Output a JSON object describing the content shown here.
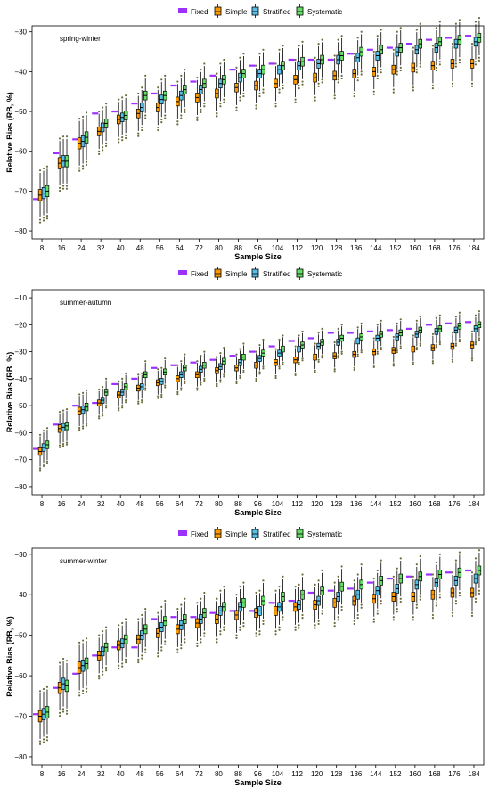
{
  "colors": {
    "Fixed": "#9b30ff",
    "Simple": "#ff9900",
    "Stratified": "#55bfe8",
    "Systematic": "#66dd66"
  },
  "chart_data": [
    {
      "type": "box",
      "title": "spring-winter",
      "xlabel": "Sample Size",
      "ylabel": "Relative Bias (RB, %)",
      "categories": [
        "8",
        "16",
        "24",
        "32",
        "40",
        "48",
        "56",
        "64",
        "72",
        "80",
        "88",
        "96",
        "104",
        "112",
        "120",
        "128",
        "136",
        "144",
        "152",
        "160",
        "168",
        "176",
        "184"
      ],
      "yticks": [
        -30,
        -40,
        -50,
        -60,
        -70,
        -80
      ],
      "ylim": [
        -82,
        -28.5
      ],
      "legend": [
        "Fixed",
        "Simple",
        "Stratified",
        "Systematic"
      ],
      "legend_position": "top",
      "series": [
        {
          "name": "Fixed",
          "values": [
            -72,
            -60.5,
            -57,
            -50.5,
            -50,
            -48,
            -45.5,
            -43.5,
            -42.5,
            -41,
            -39.5,
            -38.5,
            -38,
            -37,
            -37,
            -37,
            -35.5,
            -34.5,
            -34,
            -33,
            -32,
            -31.5,
            -31
          ]
        },
        {
          "name": "Simple",
          "values": [
            -71,
            -63,
            -58,
            -55,
            -52,
            -50.5,
            -49,
            -47.5,
            -46.5,
            -45.5,
            -44,
            -43.5,
            -43,
            -42,
            -41.5,
            -41,
            -40.5,
            -40,
            -39.5,
            -39,
            -38.5,
            -38,
            -38
          ]
        },
        {
          "name": "Stratified",
          "values": [
            -70.5,
            -62.5,
            -57.5,
            -54,
            -51.5,
            -49,
            -47,
            -46,
            -44.5,
            -43,
            -41.5,
            -40.5,
            -39.5,
            -38.5,
            -38,
            -37,
            -36.5,
            -36,
            -35,
            -34.5,
            -34,
            -33,
            -32.5
          ]
        },
        {
          "name": "Systematic",
          "values": [
            -70,
            -62.5,
            -56.5,
            -53,
            -51,
            -46,
            -46,
            -44.5,
            -43,
            -42,
            -40.5,
            -39.5,
            -38.5,
            -37.5,
            -37,
            -36,
            -35,
            -34.5,
            -34,
            -33,
            -32.5,
            -32,
            -31.5
          ]
        }
      ]
    },
    {
      "type": "box",
      "title": "summer-autumn",
      "xlabel": "Sample Size",
      "ylabel": "Relative Bias (RB, %)",
      "categories": [
        "8",
        "16",
        "24",
        "32",
        "40",
        "48",
        "56",
        "64",
        "72",
        "80",
        "88",
        "96",
        "104",
        "112",
        "120",
        "128",
        "136",
        "144",
        "152",
        "160",
        "168",
        "176",
        "184"
      ],
      "yticks": [
        -10,
        -20,
        -30,
        -40,
        -50,
        -60,
        -70,
        -80
      ],
      "ylim": [
        -83,
        -7
      ],
      "legend": [
        "Fixed",
        "Simple",
        "Stratified",
        "Systematic"
      ],
      "legend_position": "top",
      "series": [
        {
          "name": "Fixed",
          "values": [
            -66,
            -57,
            -50,
            -49,
            -42,
            -40,
            -36,
            -35,
            -34,
            -33,
            -31.5,
            -30,
            -28,
            -26,
            -25,
            -23,
            -23,
            -22.5,
            -22,
            -21.5,
            -20,
            -19.5,
            -19
          ]
        },
        {
          "name": "Simple",
          "values": [
            -67,
            -58.5,
            -52,
            -49,
            -46,
            -43.5,
            -41.5,
            -40,
            -38.5,
            -37,
            -36,
            -35,
            -34,
            -33,
            -32,
            -31.5,
            -31,
            -30,
            -29.5,
            -29,
            -28.5,
            -28,
            -27.5
          ]
        },
        {
          "name": "Stratified",
          "values": [
            -65.5,
            -58,
            -51.5,
            -48,
            -45,
            -43,
            -41,
            -38.5,
            -36.5,
            -35.5,
            -34,
            -32.5,
            -30.5,
            -29,
            -28,
            -26.5,
            -26,
            -25,
            -24.5,
            -23.5,
            -22.5,
            -22,
            -21.5
          ]
        },
        {
          "name": "Systematic",
          "values": [
            -64.5,
            -57.5,
            -50.5,
            -45,
            -43,
            -38.5,
            -37.5,
            -36,
            -35,
            -33.5,
            -32,
            -30.5,
            -29,
            -27.5,
            -26.5,
            -25,
            -24.5,
            -23.5,
            -23,
            -22,
            -21.5,
            -20.5,
            -20
          ]
        }
      ]
    },
    {
      "type": "box",
      "title": "summer-winter",
      "xlabel": "Sample Size",
      "ylabel": "Relative Bias (RB, %)",
      "categories": [
        "8",
        "16",
        "24",
        "32",
        "40",
        "48",
        "56",
        "64",
        "72",
        "80",
        "88",
        "96",
        "104",
        "112",
        "120",
        "128",
        "136",
        "144",
        "152",
        "160",
        "168",
        "176",
        "184"
      ],
      "yticks": [
        -30,
        -40,
        -50,
        -60,
        -70,
        -80
      ],
      "ylim": [
        -82,
        -28.5
      ],
      "legend": [
        "Fixed",
        "Simple",
        "Stratified",
        "Systematic"
      ],
      "legend_position": "top",
      "series": [
        {
          "name": "Fixed",
          "values": [
            -69.5,
            -63,
            -59.5,
            -55,
            -53,
            -53,
            -46,
            -45.5,
            -45.5,
            -44.5,
            -44,
            -44,
            -42,
            -41.5,
            -39.5,
            -39,
            -38.5,
            -37,
            -36,
            -35.5,
            -35,
            -34.5,
            -34
          ]
        },
        {
          "name": "Simple",
          "values": [
            -70,
            -63,
            -58,
            -55,
            -52.5,
            -51,
            -49.5,
            -48.5,
            -47,
            -46,
            -45,
            -44.5,
            -44,
            -43,
            -42.5,
            -42,
            -41.5,
            -41,
            -40.5,
            -40.5,
            -40,
            -39.5,
            -39.5
          ]
        },
        {
          "name": "Stratified",
          "values": [
            -69.5,
            -62,
            -57.5,
            -54,
            -52,
            -50,
            -48,
            -47.5,
            -46,
            -44,
            -43,
            -44,
            -43,
            -42.5,
            -41.5,
            -40.5,
            -40,
            -39,
            -38.5,
            -37.5,
            -37,
            -36.5,
            -36
          ]
        },
        {
          "name": "Systematic",
          "values": [
            -69,
            -62.5,
            -57,
            -53,
            -51,
            -48.5,
            -46.5,
            -46,
            -44.5,
            -43,
            -42,
            -41.5,
            -40.5,
            -40,
            -39,
            -38,
            -37.5,
            -36.5,
            -36,
            -35.5,
            -35,
            -34.5,
            -34
          ]
        }
      ]
    }
  ]
}
